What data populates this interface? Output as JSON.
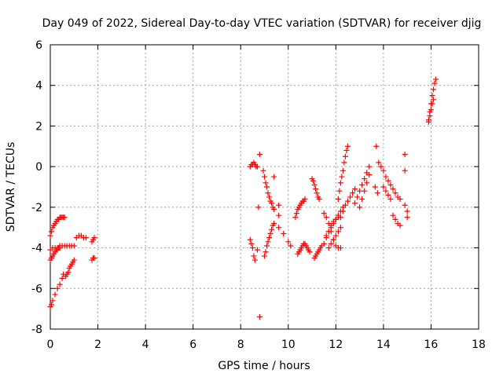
{
  "chart_data": {
    "type": "scatter",
    "title": "Day 049 of 2022, Sidereal Day-to-day VTEC variation (SDTVAR) for receiver djig",
    "xlabel": "GPS time / hours",
    "ylabel": "SDTVAR / TECUs",
    "xlim": [
      0,
      18
    ],
    "ylim": [
      -8,
      6
    ],
    "xticks": [
      0,
      2,
      4,
      6,
      8,
      10,
      12,
      14,
      16,
      18
    ],
    "yticks": [
      -8,
      -6,
      -4,
      -2,
      0,
      2,
      4,
      6
    ],
    "xtick_labels": [
      "0",
      "2",
      "4",
      "6",
      "8",
      "10",
      "12",
      "14",
      "16",
      "18"
    ],
    "ytick_labels": [
      "-8",
      "-6",
      "-4",
      "-2",
      "0",
      "2",
      "4",
      "6"
    ],
    "grid": true,
    "marker": "+",
    "color": "#ff0000",
    "series": [
      {
        "name": "SDTVAR",
        "x": [
          0.0,
          0.05,
          0.1,
          0.15,
          0.2,
          0.25,
          0.3,
          0.35,
          0.4,
          0.45,
          0.5,
          0.55,
          0.6,
          0.0,
          0.05,
          0.1,
          0.15,
          0.2,
          0.25,
          0.3,
          0.35,
          0.4,
          0.0,
          0.05,
          0.1,
          0.2,
          0.3,
          0.4,
          0.5,
          0.55,
          0.0,
          0.1,
          0.2,
          0.3,
          0.4,
          0.5,
          0.6,
          0.7,
          0.8,
          0.9,
          1.0,
          0.65,
          0.7,
          0.75,
          0.8,
          0.85,
          0.9,
          0.95,
          1.0,
          1.1,
          1.2,
          1.3,
          1.4,
          1.5,
          1.75,
          1.8,
          1.85,
          1.75,
          1.8,
          1.85,
          8.4,
          8.45,
          8.5,
          8.55,
          8.6,
          8.65,
          8.7,
          8.4,
          8.45,
          8.5,
          8.55,
          8.6,
          8.8,
          8.75,
          8.7,
          8.95,
          9.0,
          9.05,
          9.1,
          9.15,
          9.2,
          9.25,
          9.3,
          9.35,
          9.4,
          9.0,
          9.05,
          9.1,
          9.15,
          9.2,
          9.25,
          9.3,
          9.35,
          9.4,
          9.4,
          9.6,
          9.6,
          9.6,
          9.8,
          10.0,
          10.1,
          10.3,
          10.35,
          10.4,
          10.45,
          10.5,
          10.55,
          10.6,
          10.65,
          10.7,
          10.4,
          10.45,
          10.5,
          10.55,
          10.6,
          10.65,
          10.7,
          10.75,
          10.8,
          10.85,
          10.9,
          11.0,
          11.05,
          11.1,
          11.15,
          11.2,
          11.25,
          11.3,
          11.1,
          11.15,
          11.2,
          11.25,
          11.3,
          11.35,
          11.4,
          11.5,
          11.6,
          11.7,
          11.8,
          11.9,
          12.0,
          12.1,
          12.2,
          11.6,
          11.7,
          11.8,
          11.9,
          12.0,
          12.1,
          12.2,
          12.3,
          11.7,
          11.8,
          11.9,
          12.0,
          12.1,
          12.2,
          11.5,
          11.6,
          11.7,
          11.8,
          11.9,
          12.0,
          12.1,
          12.1,
          12.15,
          12.2,
          12.25,
          12.3,
          12.35,
          12.4,
          12.45,
          12.5,
          12.2,
          12.3,
          12.4,
          12.5,
          12.6,
          12.7,
          12.8,
          12.8,
          12.9,
          13.0,
          13.1,
          13.2,
          13.3,
          13.4,
          13.0,
          13.1,
          13.2,
          13.3,
          13.4,
          13.7,
          13.65,
          13.75,
          13.8,
          13.9,
          14.0,
          14.1,
          14.2,
          14.3,
          14.4,
          14.5,
          14.6,
          14.7,
          14.0,
          14.1,
          14.2,
          14.3,
          14.4,
          14.5,
          14.6,
          14.7,
          14.9,
          14.9,
          14.9,
          15.0,
          15.0,
          15.9,
          15.95,
          16.0,
          16.05,
          16.1,
          16.15,
          16.2,
          15.9,
          15.95,
          16.0,
          16.05,
          16.1,
          8.8
        ],
        "y": [
          -3.4,
          -3.2,
          -3.0,
          -2.9,
          -2.8,
          -2.7,
          -2.6,
          -2.6,
          -2.5,
          -2.5,
          -2.5,
          -2.5,
          -2.5,
          -4.6,
          -4.5,
          -4.4,
          -4.3,
          -4.2,
          -4.1,
          -4.1,
          -4.0,
          -4.0,
          -6.9,
          -6.8,
          -6.6,
          -6.3,
          -6.0,
          -5.8,
          -5.5,
          -5.3,
          -4.1,
          -4.0,
          -4.0,
          -4.0,
          -3.9,
          -3.9,
          -3.9,
          -3.9,
          -3.9,
          -3.9,
          -3.9,
          -5.4,
          -5.3,
          -5.2,
          -5.0,
          -4.9,
          -4.8,
          -4.7,
          -4.6,
          -3.5,
          -3.4,
          -3.4,
          -3.5,
          -3.5,
          -3.7,
          -3.6,
          -3.5,
          -4.6,
          -4.5,
          -4.5,
          0.0,
          0.1,
          0.1,
          0.2,
          0.1,
          0.0,
          0.0,
          -3.6,
          -3.8,
          -4.0,
          -4.4,
          -4.6,
          0.6,
          -2.0,
          -4.1,
          -0.2,
          -0.5,
          -0.8,
          -1.0,
          -1.3,
          -1.5,
          -1.7,
          -1.8,
          -2.0,
          -2.1,
          -4.4,
          -4.2,
          -3.9,
          -3.7,
          -3.5,
          -3.3,
          -3.1,
          -2.9,
          -2.8,
          -0.5,
          -1.9,
          -2.4,
          -3.0,
          -3.3,
          -3.7,
          -3.9,
          -2.5,
          -2.3,
          -2.1,
          -2.0,
          -1.9,
          -1.8,
          -1.7,
          -1.7,
          -1.6,
          -4.3,
          -4.2,
          -4.1,
          -4.0,
          -3.9,
          -3.8,
          -3.8,
          -3.9,
          -4.0,
          -4.1,
          -4.2,
          -0.6,
          -0.7,
          -0.9,
          -1.1,
          -1.3,
          -1.5,
          -1.6,
          -4.5,
          -4.4,
          -4.3,
          -4.2,
          -4.1,
          -4.0,
          -3.9,
          -2.3,
          -2.5,
          -2.8,
          -3.2,
          -3.6,
          -3.9,
          -4.0,
          -4.0,
          -3.4,
          -3.2,
          -3.0,
          -2.8,
          -2.6,
          -2.4,
          -2.2,
          -2.0,
          -4.0,
          -3.8,
          -3.6,
          -3.4,
          -3.2,
          -3.0,
          -3.8,
          -3.5,
          -3.2,
          -2.9,
          -2.7,
          -2.6,
          -2.5,
          -1.6,
          -1.2,
          -0.8,
          -0.5,
          -0.2,
          0.2,
          0.5,
          0.8,
          1.0,
          -2.5,
          -2.2,
          -1.9,
          -1.7,
          -1.5,
          -1.3,
          -1.1,
          -1.8,
          -1.5,
          -1.2,
          -0.9,
          -0.6,
          -0.3,
          0.0,
          -2.0,
          -1.6,
          -1.2,
          -0.8,
          -0.4,
          1.0,
          -1.0,
          -1.3,
          0.2,
          0.0,
          -0.2,
          -0.5,
          -0.7,
          -0.9,
          -1.1,
          -1.3,
          -1.5,
          -1.6,
          -1.0,
          -1.2,
          -1.4,
          -1.6,
          -2.4,
          -2.6,
          -2.8,
          -2.9,
          0.6,
          -0.2,
          -1.9,
          -2.2,
          -2.5,
          2.3,
          2.7,
          3.1,
          3.5,
          3.8,
          4.1,
          4.3,
          2.2,
          2.5,
          2.8,
          3.1,
          3.3,
          -7.4
        ]
      }
    ]
  }
}
